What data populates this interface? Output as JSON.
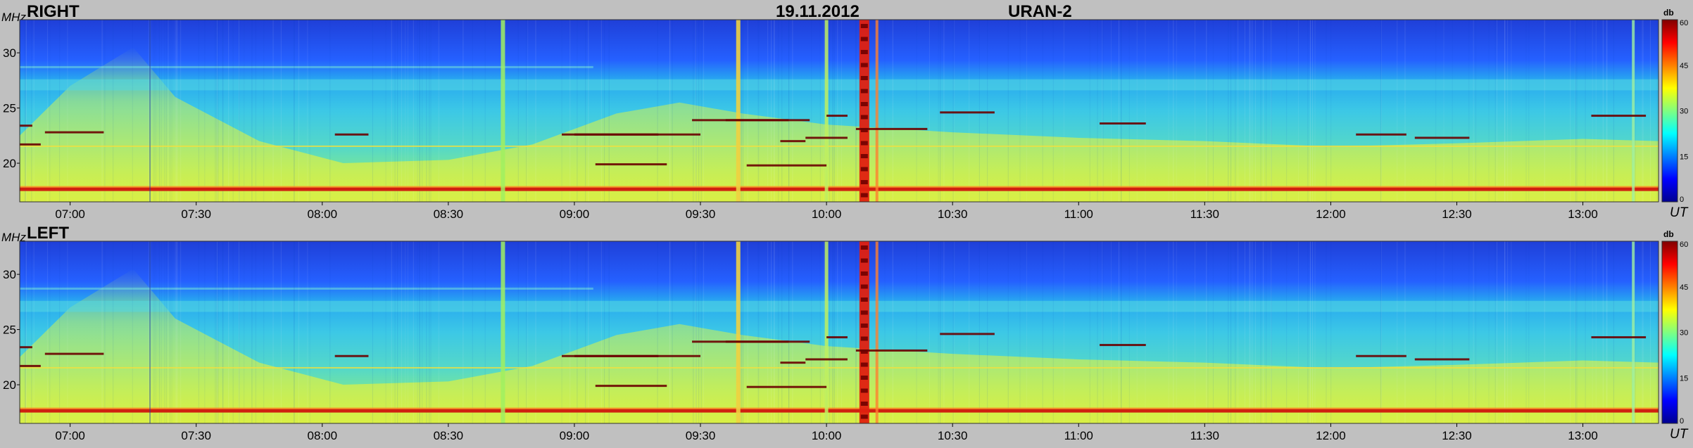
{
  "chart_data": [
    {
      "type": "heatmap",
      "panel_label": "RIGHT",
      "date": "19.11.2012",
      "instrument": "URAN-2",
      "y_unit": "MHz",
      "x_unit": "UT",
      "colorbar_unit": "db",
      "x_range_ut": [
        "06:48",
        "13:18"
      ],
      "x_ticks": [
        "07:00",
        "07:30",
        "08:00",
        "08:30",
        "09:00",
        "09:30",
        "10:00",
        "10:30",
        "11:00",
        "11:30",
        "12:00",
        "12:30",
        "13:00"
      ],
      "y_ticks": [
        20,
        25,
        30
      ],
      "ylim": [
        16.5,
        33
      ],
      "colorbar_ticks": [
        0,
        15,
        30,
        45,
        60
      ],
      "clim": [
        0,
        60
      ],
      "grid": false
    },
    {
      "type": "heatmap",
      "panel_label": "LEFT",
      "y_unit": "MHz",
      "x_unit": "UT",
      "colorbar_unit": "db",
      "x_range_ut": [
        "06:48",
        "13:18"
      ],
      "x_ticks": [
        "07:00",
        "07:30",
        "08:00",
        "08:30",
        "09:00",
        "09:30",
        "10:00",
        "10:30",
        "11:00",
        "11:30",
        "12:00",
        "12:30",
        "13:00"
      ],
      "y_ticks": [
        20,
        25,
        30
      ],
      "ylim": [
        16.5,
        33
      ],
      "colorbar_ticks": [
        0,
        15,
        30,
        45,
        60
      ],
      "clim": [
        0,
        60
      ],
      "grid": false
    }
  ],
  "colors": {
    "background": "#c0c0c0",
    "scale_0": "#00008f",
    "scale_15": "#0080ff",
    "scale_30": "#80ff80",
    "scale_45": "#ff8000",
    "scale_60": "#800000"
  }
}
